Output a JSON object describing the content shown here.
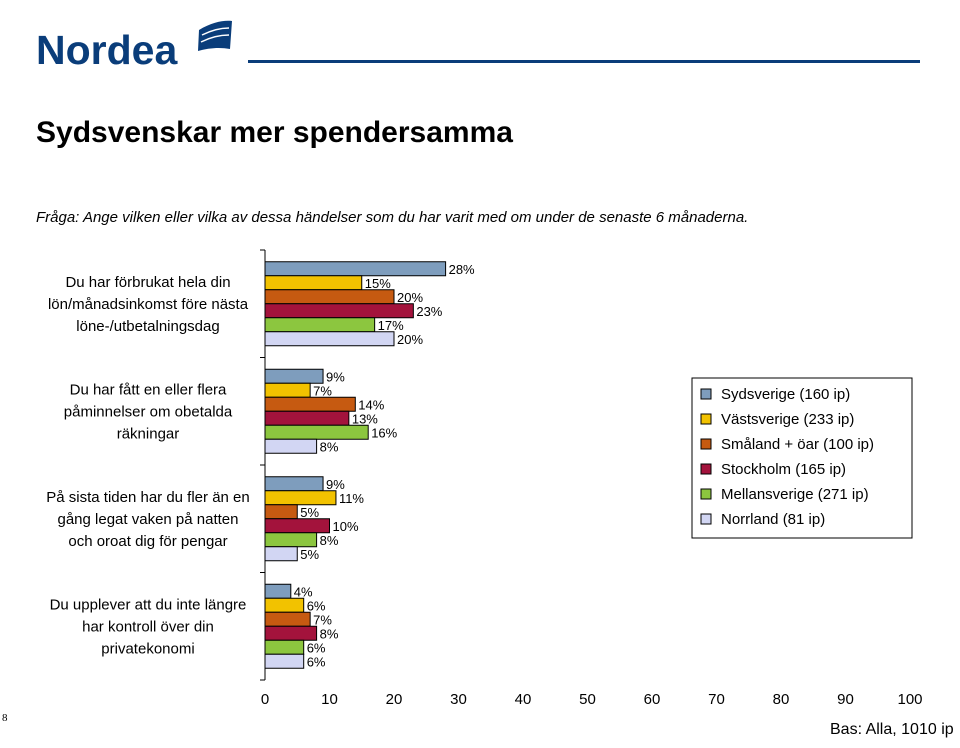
{
  "brand": {
    "name": "Nordea",
    "color": "#0a3d7a"
  },
  "slide": {
    "title": "Sydsvenskar mer spendersamma",
    "question": "Fråga: Ange vilken eller vilka av dessa händelser som du har varit med om under de senaste 6 månaderna.",
    "page_number": "8",
    "base_note": "Bas: Alla, 1010 ip"
  },
  "chart_data": {
    "type": "bar",
    "orientation": "horizontal",
    "xlim": [
      0,
      100
    ],
    "xticks": [
      0,
      10,
      20,
      30,
      40,
      50,
      60,
      70,
      80,
      90,
      100
    ],
    "value_suffix": "%",
    "legend_position": "right",
    "categories": [
      [
        "Du har förbrukat hela din",
        "lön/månadsinkomst före nästa",
        "löne-/utbetalningsdag"
      ],
      [
        "Du har fått en eller flera",
        "påminnelser om obetalda",
        "räkningar"
      ],
      [
        "På sista tiden har du fler än en",
        "gång legat vaken på natten",
        "och oroat dig för pengar"
      ],
      [
        "Du upplever att du inte längre",
        "har kontroll över din",
        "privatekonomi"
      ]
    ],
    "series": [
      {
        "name": "Sydsverige (160 ip)",
        "color": "#7e9dbd",
        "values": [
          28,
          9,
          9,
          4
        ]
      },
      {
        "name": "Västsverige (233 ip)",
        "color": "#f2c200",
        "values": [
          15,
          7,
          11,
          6
        ]
      },
      {
        "name": "Småland + öar (100 ip)",
        "color": "#c65a11",
        "values": [
          20,
          14,
          5,
          7
        ]
      },
      {
        "name": "Stockholm (165 ip)",
        "color": "#a3133c",
        "values": [
          23,
          13,
          10,
          8
        ]
      },
      {
        "name": "Mellansverige (271 ip)",
        "color": "#8cc63f",
        "values": [
          17,
          16,
          8,
          6
        ]
      },
      {
        "name": "Norrland (81 ip)",
        "color": "#d2d6f3",
        "values": [
          20,
          8,
          5,
          6
        ]
      }
    ]
  }
}
